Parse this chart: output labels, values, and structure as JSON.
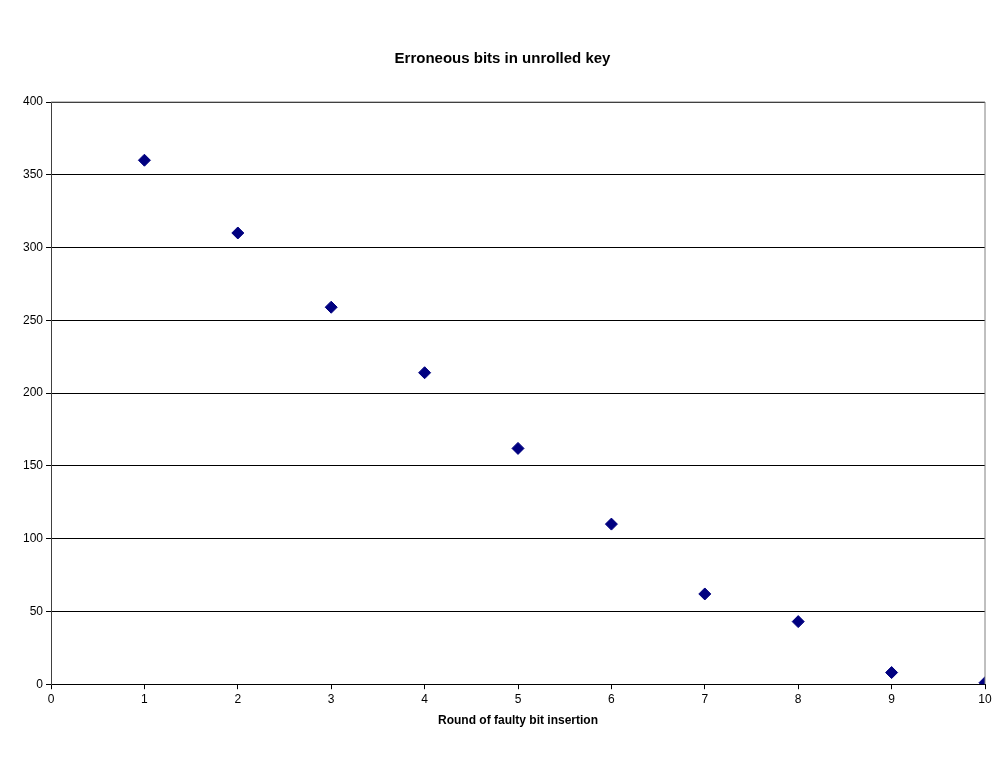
{
  "chart_data": {
    "type": "scatter",
    "title": "Erroneous bits in unrolled key",
    "xlabel": "Round of faulty bit insertion",
    "x": [
      1,
      2,
      3,
      4,
      5,
      6,
      7,
      8,
      9,
      10
    ],
    "series": [
      {
        "color": "#000080",
        "values": [
          360,
          310,
          259,
          214,
          162,
          110,
          62,
          43,
          8,
          1
        ]
      }
    ],
    "xlim": [
      0,
      10
    ],
    "xticks": [
      0,
      1,
      2,
      3,
      4,
      5,
      6,
      7,
      8,
      9,
      10
    ],
    "ylim": [
      0,
      400
    ],
    "yticks": [
      0,
      50,
      100,
      150,
      200,
      250,
      300,
      350,
      400
    ],
    "grid": "y",
    "legend": false,
    "marker": "diamond"
  }
}
